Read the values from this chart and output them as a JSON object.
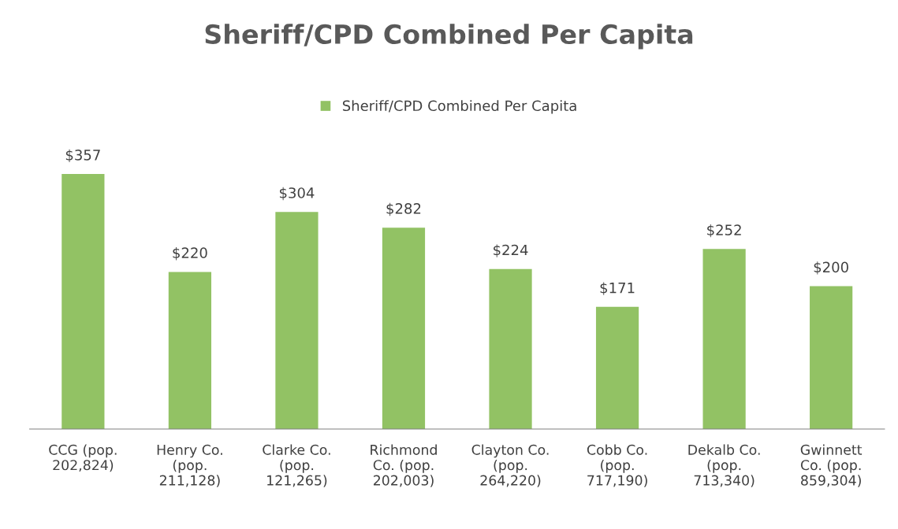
{
  "chart_data": {
    "type": "bar",
    "title": "Sheriff/CPD Combined Per Capita",
    "categories": [
      "CCG (pop.\n202,824)",
      "Henry Co.\n(pop.\n211,128)",
      "Clarke Co.\n(pop.\n121,265)",
      "Richmond\nCo. (pop.\n202,003)",
      "Clayton Co.\n(pop.\n264,220)",
      "Cobb Co.\n(pop.\n717,190)",
      "Dekalb Co.\n(pop.\n713,340)",
      "Gwinnett\nCo. (pop.\n859,304)"
    ],
    "series": [
      {
        "name": "Sheriff/CPD Combined Per Capita",
        "color": "#92c264",
        "values": [
          357,
          220,
          304,
          282,
          224,
          171,
          252,
          200
        ],
        "value_labels": [
          "$357",
          "$220",
          "$304",
          "$282",
          "$224",
          "$171",
          "$252",
          "$200"
        ]
      }
    ],
    "legend": "top",
    "grid": false
  }
}
